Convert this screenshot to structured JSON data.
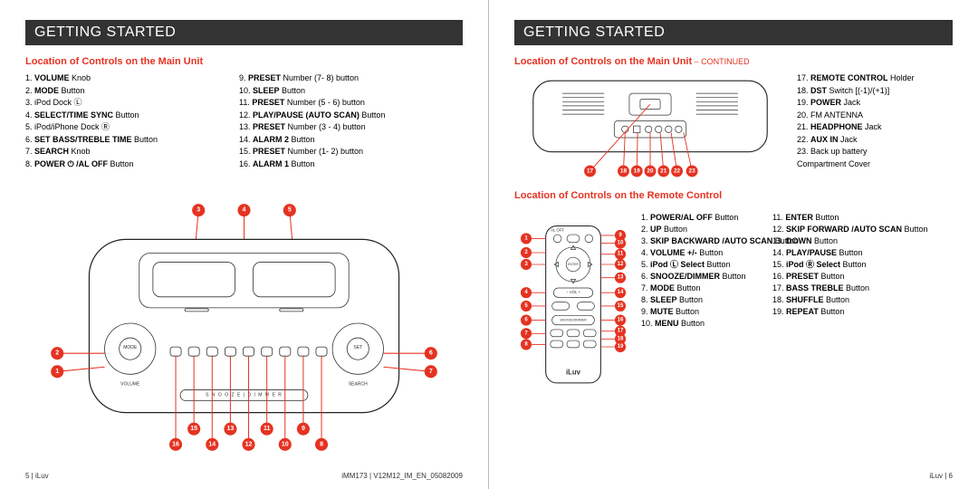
{
  "colors": {
    "accent": "#e53322",
    "bar": "#333333",
    "text": "#111111"
  },
  "left": {
    "header": "GETTING STARTED",
    "subhead": "Location of Controls on the Main Unit",
    "col1": [
      {
        "n": "1.",
        "b": "VOLUME",
        "rest": " Knob"
      },
      {
        "n": "2.",
        "b": "MODE",
        "rest": " Button"
      },
      {
        "n": "3.",
        "b": "",
        "rest": "iPod Dock Ⓛ"
      },
      {
        "n": "4.",
        "b": "SELECT/TIME SYNC",
        "rest": " Button"
      },
      {
        "n": "5.",
        "b": "",
        "rest": "iPod/iPhone Dock Ⓡ"
      },
      {
        "n": "6.",
        "b": "SET BASS/TREBLE TIME",
        "rest": " Button"
      },
      {
        "n": "7.",
        "b": "SEARCH",
        "rest": " Knob"
      },
      {
        "n": "8.",
        "b": "POWER ⏻ /AL OFF",
        "rest": " Button"
      }
    ],
    "col2": [
      {
        "n": "9.",
        "b": "PRESET",
        "rest": " Number (7- 8) button"
      },
      {
        "n": "10.",
        "b": "SLEEP",
        "rest": " Button"
      },
      {
        "n": "11.",
        "b": "PRESET",
        "rest": " Number (5 - 6) button"
      },
      {
        "n": "12.",
        "b": "PLAY/PAUSE (AUTO SCAN)",
        "rest": " Button"
      },
      {
        "n": "13.",
        "b": "PRESET",
        "rest": " Number (3 - 4) button"
      },
      {
        "n": "14.",
        "b": "ALARM 2",
        "rest": " Button"
      },
      {
        "n": "15.",
        "b": "PRESET",
        "rest": " Number (1- 2) button"
      },
      {
        "n": "16.",
        "b": "ALARM 1",
        "rest": " Button"
      }
    ],
    "top_callouts": [
      3,
      4,
      5
    ],
    "bottom_callouts": [
      16,
      15,
      14,
      13,
      12,
      11,
      10,
      9,
      8
    ],
    "footer_left": "5 | iLuv",
    "footer_right": "iMM173 | V12M12_IM_EN_05082009"
  },
  "right": {
    "header": "GETTING STARTED",
    "subhead1": "Location of Controls on the Main Unit",
    "subhead1_cont": " – CONTINUED",
    "rear_list": [
      {
        "n": "17.",
        "b": "REMOTE CONTROL",
        "rest": " Holder"
      },
      {
        "n": "18.",
        "b": "DST",
        "rest": " Switch [(-1)/(+1)]"
      },
      {
        "n": "19.",
        "b": "POWER",
        "rest": " Jack"
      },
      {
        "n": "20.",
        "b": "",
        "rest": "FM ANTENNA"
      },
      {
        "n": "21.",
        "b": "HEADPHONE",
        "rest": " Jack"
      },
      {
        "n": "22.",
        "b": "AUX IN",
        "rest": " Jack"
      },
      {
        "n": "23.",
        "b": "",
        "rest": "Back up battery\nCompartment Cover"
      }
    ],
    "rear_callouts": [
      17,
      18,
      19,
      20,
      21,
      22,
      23
    ],
    "subhead2": "Location of Controls on the Remote Control",
    "remote_col1": [
      {
        "n": "1.",
        "b": "POWER/AL OFF",
        "rest": " Button"
      },
      {
        "n": "2.",
        "b": "UP",
        "rest": " Button"
      },
      {
        "n": "3.",
        "b": "SKIP BACKWARD /AUTO SCAN",
        "rest": " Button"
      },
      {
        "n": "4.",
        "b": "VOLUME +/-",
        "rest": " Button"
      },
      {
        "n": "5.",
        "b": "iPod Ⓛ Select",
        "rest": " Button"
      },
      {
        "n": "6.",
        "b": "SNOOZE/DIMMER",
        "rest": " Button"
      },
      {
        "n": "7.",
        "b": "MODE",
        "rest": " Button"
      },
      {
        "n": "8.",
        "b": "SLEEP",
        "rest": " Button"
      },
      {
        "n": "9.",
        "b": "MUTE",
        "rest": " Button"
      },
      {
        "n": "10.",
        "b": "MENU",
        "rest": " Button"
      }
    ],
    "remote_col2": [
      {
        "n": "11.",
        "b": "ENTER",
        "rest": " Button"
      },
      {
        "n": "12.",
        "b": "SKIP FORWARD /AUTO SCAN",
        "rest": " Button"
      },
      {
        "n": "13.",
        "b": "DOWN",
        "rest": " Button"
      },
      {
        "n": "14.",
        "b": "PLAY/PAUSE",
        "rest": " Button"
      },
      {
        "n": "15.",
        "b": "iPod Ⓡ Select",
        "rest": " Button"
      },
      {
        "n": "16.",
        "b": "PRESET",
        "rest": " Button"
      },
      {
        "n": "17.",
        "b": "BASS TREBLE",
        "rest": " Button"
      },
      {
        "n": "18.",
        "b": "SHUFFLE",
        "rest": " Button"
      },
      {
        "n": "19.",
        "b": "REPEAT",
        "rest": " Button"
      }
    ],
    "remote_left_callouts": [
      1,
      2,
      3,
      4,
      5,
      6,
      7,
      8
    ],
    "remote_right_callouts": [
      9,
      10,
      11,
      12,
      13,
      14,
      15,
      16,
      17,
      18,
      19
    ],
    "brand": "iLuv",
    "footer_right": "iLuv | 6"
  }
}
